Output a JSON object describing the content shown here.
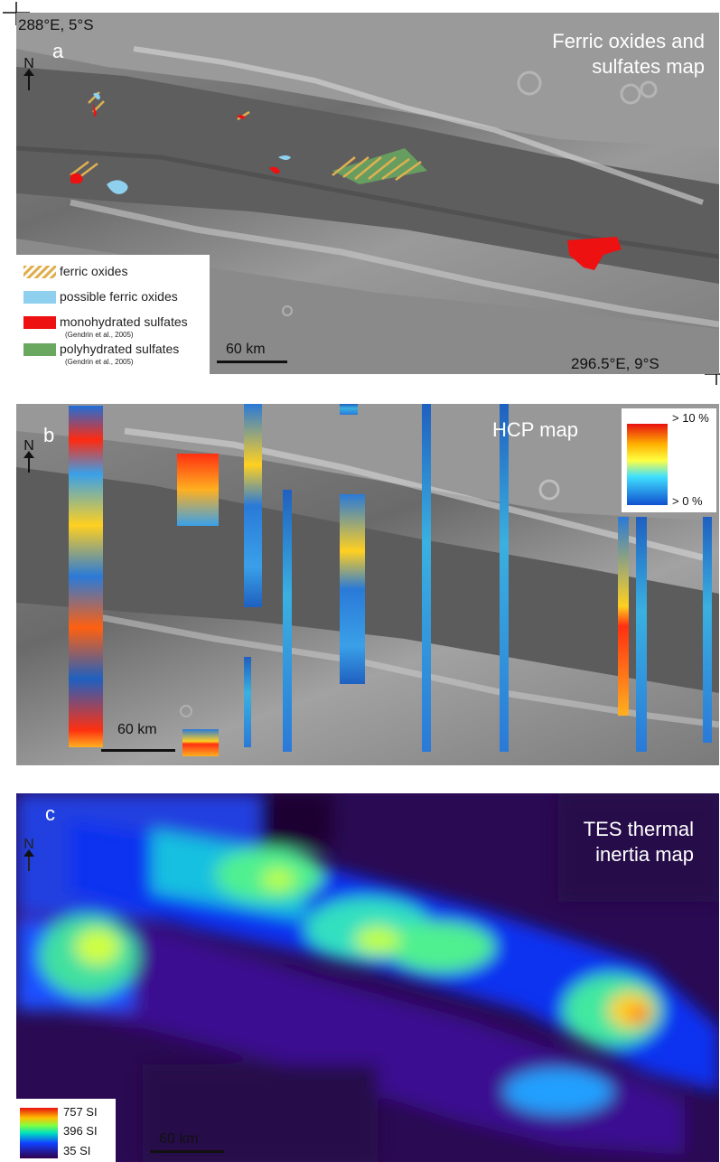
{
  "panel_a": {
    "letter": "a",
    "title_line1": "Ferric oxides and",
    "title_line2": "sulfates map",
    "coord_top_left": "288°E, 5°S",
    "coord_bottom_right": "296.5°E, 9°S",
    "north": "N",
    "scale": "60 km",
    "legend": [
      {
        "label": "ferric oxides",
        "color": "#e0b050",
        "pattern": "hatch"
      },
      {
        "label": "possible ferric oxides",
        "color": "#8fd0ee",
        "pattern": "solid"
      },
      {
        "label": "monohydrated sulfates",
        "sub": "(Gendrin et al., 2005)",
        "color": "#ee1111",
        "pattern": "solid"
      },
      {
        "label": "polyhydrated sulfates",
        "sub": "(Gendrin et al., 2005)",
        "color": "#6aa860",
        "pattern": "solid"
      }
    ]
  },
  "panel_b": {
    "letter": "b",
    "title": "HCP map",
    "north": "N",
    "scale": "60 km",
    "colorbar_max": "> 10 %",
    "colorbar_min": "> 0 %"
  },
  "panel_c": {
    "letter": "c",
    "title_line1": "TES thermal",
    "title_line2": "inertia map",
    "north": "N",
    "scale": "60 km",
    "colorbar_labels": [
      "757 SI",
      "396 SI",
      "35 SI"
    ]
  }
}
